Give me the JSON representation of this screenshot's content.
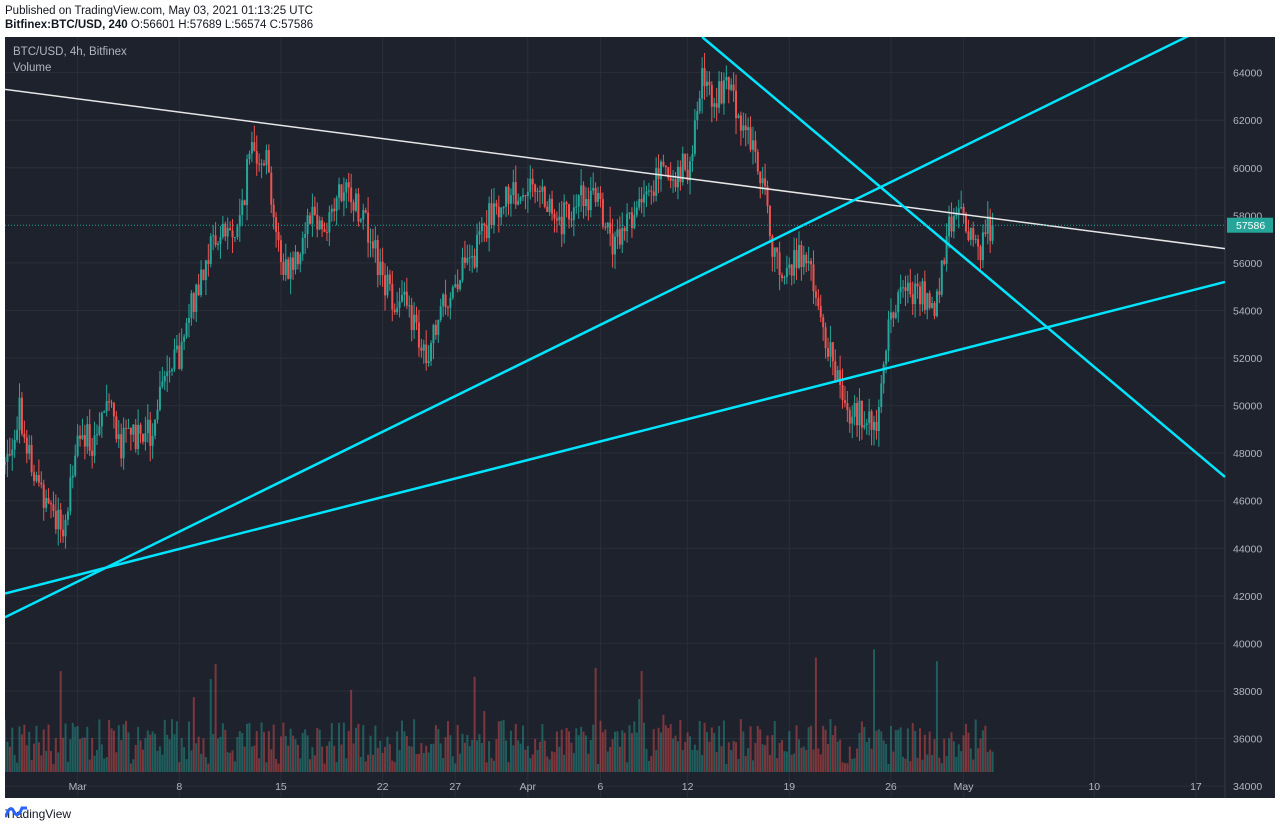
{
  "header": {
    "published": "Published on TradingView.com, May 03, 2021 01:13:25 UTC",
    "symbol_line": "Bitfinex:BTC/USD, 240",
    "ohlc_line": "O:56601 H:57689 L:56574 C:57586"
  },
  "legend": {
    "symbol": "BTC/USD, 4h, Bitfinex",
    "indicator": "Volume"
  },
  "last_price_label": "57586",
  "footer": {
    "brand": "TradingView",
    "logo_icon": "tradingview-logo-icon"
  },
  "colors": {
    "background": "#1e222d",
    "grid": "#2a2e39",
    "up": "#26a69a",
    "down": "#ef5350",
    "trendline_cyan": "#00e5ff",
    "trendline_white": "#e6e6e6",
    "axis_text": "#b2b5be",
    "price_label": "#26a69a"
  },
  "chart_data": {
    "type": "candlestick",
    "title": "BTC/USD, 4h, Bitfinex",
    "timeframe": "4h",
    "ylim": [
      33500,
      65500
    ],
    "xlim": [
      "2021-02-24",
      "2021-05-19"
    ],
    "y_ticks": [
      34000,
      36000,
      38000,
      40000,
      42000,
      44000,
      46000,
      48000,
      50000,
      52000,
      54000,
      56000,
      58000,
      60000,
      62000,
      64000
    ],
    "x_ticks": [
      {
        "label": "Mar",
        "date": "2021-03-01"
      },
      {
        "label": "8",
        "date": "2021-03-08"
      },
      {
        "label": "15",
        "date": "2021-03-15"
      },
      {
        "label": "22",
        "date": "2021-03-22"
      },
      {
        "label": "27",
        "date": "2021-03-27"
      },
      {
        "label": "Apr",
        "date": "2021-04-01"
      },
      {
        "label": "6",
        "date": "2021-04-06"
      },
      {
        "label": "12",
        "date": "2021-04-12"
      },
      {
        "label": "19",
        "date": "2021-04-19"
      },
      {
        "label": "26",
        "date": "2021-04-26"
      },
      {
        "label": "May",
        "date": "2021-05-01"
      },
      {
        "label": "10",
        "date": "2021-05-10"
      },
      {
        "label": "17",
        "date": "2021-05-17"
      }
    ],
    "close_path": [
      [
        "2021-02-24",
        47500
      ],
      [
        "2021-02-25",
        50000
      ],
      [
        "2021-02-26",
        46800
      ],
      [
        "2021-02-27",
        46200
      ],
      [
        "2021-02-28",
        44500
      ],
      [
        "2021-03-01",
        49000
      ],
      [
        "2021-03-02",
        48500
      ],
      [
        "2021-03-03",
        50800
      ],
      [
        "2021-03-04",
        48300
      ],
      [
        "2021-03-05",
        48800
      ],
      [
        "2021-03-06",
        48800
      ],
      [
        "2021-03-07",
        51000
      ],
      [
        "2021-03-08",
        52000
      ],
      [
        "2021-03-09",
        54500
      ],
      [
        "2021-03-10",
        56500
      ],
      [
        "2021-03-11",
        57400
      ],
      [
        "2021-03-12",
        57200
      ],
      [
        "2021-03-13",
        61000
      ],
      [
        "2021-03-14",
        60500
      ],
      [
        "2021-03-15",
        55800
      ],
      [
        "2021-03-16",
        56100
      ],
      [
        "2021-03-17",
        58300
      ],
      [
        "2021-03-18",
        57500
      ],
      [
        "2021-03-19",
        58800
      ],
      [
        "2021-03-20",
        58700
      ],
      [
        "2021-03-21",
        57500
      ],
      [
        "2021-03-22",
        55200
      ],
      [
        "2021-03-23",
        54500
      ],
      [
        "2021-03-24",
        53800
      ],
      [
        "2021-03-25",
        51500
      ],
      [
        "2021-03-26",
        53900
      ],
      [
        "2021-03-27",
        55300
      ],
      [
        "2021-03-28",
        55800
      ],
      [
        "2021-03-29",
        57500
      ],
      [
        "2021-03-30",
        58500
      ],
      [
        "2021-03-31",
        58800
      ],
      [
        "2021-04-01",
        59300
      ],
      [
        "2021-04-02",
        59200
      ],
      [
        "2021-04-03",
        57500
      ],
      [
        "2021-04-04",
        58200
      ],
      [
        "2021-04-05",
        59000
      ],
      [
        "2021-04-06",
        58100
      ],
      [
        "2021-04-07",
        56500
      ],
      [
        "2021-04-08",
        58100
      ],
      [
        "2021-04-09",
        58400
      ],
      [
        "2021-04-10",
        59900
      ],
      [
        "2021-04-11",
        59800
      ],
      [
        "2021-04-12",
        60000
      ],
      [
        "2021-04-13",
        63500
      ],
      [
        "2021-04-14",
        63000
      ],
      [
        "2021-04-15",
        63200
      ],
      [
        "2021-04-16",
        61500
      ],
      [
        "2021-04-17",
        60000
      ],
      [
        "2021-04-18",
        56200
      ],
      [
        "2021-04-19",
        55700
      ],
      [
        "2021-04-20",
        56500
      ],
      [
        "2021-04-21",
        54000
      ],
      [
        "2021-04-22",
        51800
      ],
      [
        "2021-04-23",
        50000
      ],
      [
        "2021-04-24",
        49600
      ],
      [
        "2021-04-25",
        49000
      ],
      [
        "2021-04-26",
        54000
      ],
      [
        "2021-04-27",
        55000
      ],
      [
        "2021-04-28",
        54900
      ],
      [
        "2021-04-29",
        53500
      ],
      [
        "2021-04-30",
        57700
      ],
      [
        "2021-05-01",
        57800
      ],
      [
        "2021-05-02",
        56600
      ],
      [
        "2021-05-03",
        57586
      ]
    ],
    "last_close": 57586,
    "trendlines": [
      {
        "name": "descending-resistance-white",
        "color": "#e6e6e6",
        "points": [
          [
            "2021-02-24",
            63300
          ],
          [
            "2021-05-19",
            56600
          ]
        ]
      },
      {
        "name": "rising-support-steep",
        "color": "#00e5ff",
        "points": [
          [
            "2021-02-24",
            41100
          ],
          [
            "2021-05-19",
            66300
          ]
        ]
      },
      {
        "name": "rising-support-shallow",
        "color": "#00e5ff",
        "points": [
          [
            "2021-02-24",
            42100
          ],
          [
            "2021-05-19",
            55200
          ]
        ]
      },
      {
        "name": "descending-from-top",
        "color": "#00e5ff",
        "points": [
          [
            "2021-04-13",
            65500
          ],
          [
            "2021-05-19",
            47000
          ]
        ]
      }
    ]
  }
}
